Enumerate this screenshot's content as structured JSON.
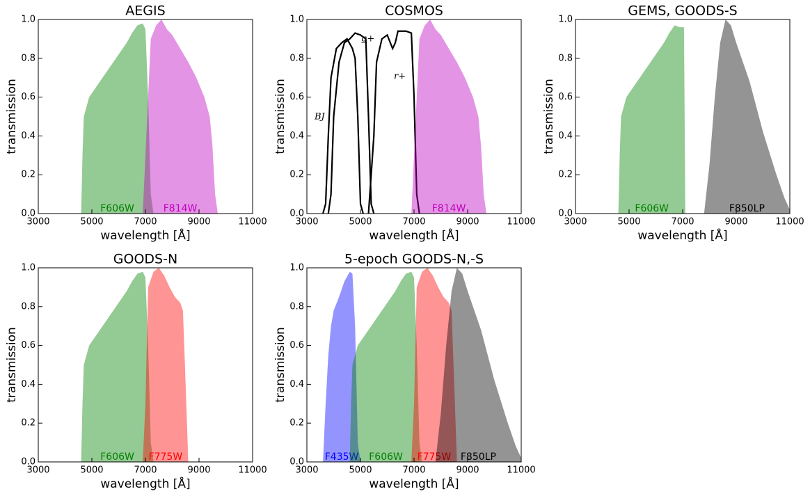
{
  "chart_data": [
    {
      "type": "area",
      "title": "AEGIS",
      "xlabel": "wavelength [Å]",
      "ylabel": "transmission",
      "xlim": [
        3000,
        11000
      ],
      "ylim": [
        0,
        1
      ],
      "xticks": [
        3000,
        5000,
        7000,
        9000,
        11000
      ],
      "yticks": [
        {
          "value": 0,
          "label": "0.0"
        },
        {
          "value": 0.2,
          "label": "0.2"
        },
        {
          "value": 0.4,
          "label": "0.4"
        },
        {
          "value": 0.6,
          "label": "0.6"
        },
        {
          "value": 0.8,
          "label": "0.8"
        },
        {
          "value": 1,
          "label": "1.0"
        }
      ],
      "series": [
        {
          "name": "F606W",
          "color": "#008000",
          "x": [
            4600,
            4650,
            4700,
            4900,
            5200,
            5500,
            5800,
            6000,
            6300,
            6500,
            6700,
            6900,
            7000,
            7100,
            7200,
            7300
          ],
          "values": [
            0,
            0.3,
            0.5,
            0.6,
            0.66,
            0.72,
            0.78,
            0.82,
            0.88,
            0.93,
            0.97,
            0.98,
            0.95,
            0.6,
            0.1,
            0
          ]
        },
        {
          "name": "F814W",
          "color": "#bf00bf",
          "x": [
            6900,
            7000,
            7200,
            7400,
            7600,
            7800,
            8000,
            8300,
            8600,
            8900,
            9200,
            9400,
            9500,
            9600,
            9700
          ],
          "values": [
            0,
            0.3,
            0.9,
            0.97,
            1,
            0.95,
            0.92,
            0.85,
            0.78,
            0.7,
            0.6,
            0.5,
            0.35,
            0.1,
            0
          ]
        }
      ]
    },
    {
      "type": "area",
      "title": "COSMOS",
      "xlabel": "wavelength [Å]",
      "ylabel": "transmission",
      "xlim": [
        3000,
        11000
      ],
      "ylim": [
        0,
        1
      ],
      "xticks": [
        3000,
        5000,
        7000,
        9000,
        11000
      ],
      "yticks": [
        {
          "value": 0,
          "label": "0.0"
        },
        {
          "value": 0.2,
          "label": "0.2"
        },
        {
          "value": 0.4,
          "label": "0.4"
        },
        {
          "value": 0.6,
          "label": "0.6"
        },
        {
          "value": 0.8,
          "label": "0.8"
        },
        {
          "value": 1,
          "label": "1.0"
        }
      ],
      "series": [
        {
          "name": "BJ",
          "type": "line",
          "color": "#000000",
          "x": [
            3600,
            3700,
            3800,
            3900,
            4100,
            4300,
            4500,
            4700,
            4800,
            4900,
            5000,
            5100
          ],
          "values": [
            0,
            0.05,
            0.4,
            0.7,
            0.85,
            0.88,
            0.9,
            0.85,
            0.8,
            0.5,
            0.05,
            0
          ]
        },
        {
          "name": "g+",
          "type": "line",
          "color": "#000000",
          "x": [
            3800,
            3900,
            4000,
            4200,
            4400,
            4600,
            4800,
            5000,
            5200,
            5300,
            5400,
            5500
          ],
          "values": [
            0,
            0.1,
            0.5,
            0.78,
            0.88,
            0.9,
            0.93,
            0.92,
            0.9,
            0.5,
            0.05,
            0
          ]
        },
        {
          "name": "r+",
          "type": "line",
          "color": "#000000",
          "x": [
            5300,
            5500,
            5600,
            5800,
            6000,
            6200,
            6300,
            6400,
            6700,
            6900,
            7000,
            7100,
            7200
          ],
          "values": [
            0,
            0.4,
            0.78,
            0.9,
            0.92,
            0.85,
            0.88,
            0.94,
            0.94,
            0.93,
            0.6,
            0.1,
            0
          ]
        },
        {
          "name": "F814W",
          "color": "#bf00bf",
          "x": [
            6900,
            7000,
            7200,
            7400,
            7600,
            7800,
            8000,
            8300,
            8600,
            8900,
            9200,
            9400,
            9500,
            9600,
            9700
          ],
          "values": [
            0,
            0.3,
            0.9,
            0.97,
            1,
            0.95,
            0.92,
            0.85,
            0.78,
            0.7,
            0.6,
            0.5,
            0.35,
            0.1,
            0
          ]
        }
      ]
    },
    {
      "type": "area",
      "title": "GEMS, GOODS-S",
      "xlabel": "wavelength [Å]",
      "ylabel": "transmission",
      "xlim": [
        3000,
        11000
      ],
      "ylim": [
        0,
        1
      ],
      "xticks": [
        3000,
        5000,
        7000,
        9000,
        11000
      ],
      "yticks": [
        {
          "value": 0,
          "label": "0.0"
        },
        {
          "value": 0.2,
          "label": "0.2"
        },
        {
          "value": 0.4,
          "label": "0.4"
        },
        {
          "value": 0.6,
          "label": "0.6"
        },
        {
          "value": 0.8,
          "label": "0.8"
        },
        {
          "value": 1,
          "label": "1.0"
        }
      ],
      "series": [
        {
          "name": "F606W",
          "color": "#008000",
          "x": [
            4600,
            4650,
            4700,
            4900,
            5200,
            5500,
            5800,
            6000,
            6300,
            6500,
            6700,
            6900,
            7050,
            7100
          ],
          "values": [
            0,
            0.3,
            0.5,
            0.6,
            0.66,
            0.72,
            0.78,
            0.82,
            0.88,
            0.93,
            0.97,
            0.96,
            0.96,
            0
          ]
        },
        {
          "name": "F850LP",
          "color": "#000000",
          "x": [
            7800,
            8000,
            8200,
            8400,
            8600,
            8800,
            9000,
            9500,
            10000,
            10500,
            10800,
            11000
          ],
          "values": [
            0,
            0.25,
            0.6,
            0.88,
            1,
            0.97,
            0.88,
            0.68,
            0.42,
            0.2,
            0.08,
            0.02
          ]
        }
      ]
    },
    {
      "type": "area",
      "title": "GOODS-N",
      "xlabel": "wavelength [Å]",
      "ylabel": "transmission",
      "xlim": [
        3000,
        11000
      ],
      "ylim": [
        0,
        1
      ],
      "xticks": [
        3000,
        5000,
        7000,
        9000,
        11000
      ],
      "yticks": [
        {
          "value": 0,
          "label": "0.0"
        },
        {
          "value": 0.2,
          "label": "0.2"
        },
        {
          "value": 0.4,
          "label": "0.4"
        },
        {
          "value": 0.6,
          "label": "0.6"
        },
        {
          "value": 0.8,
          "label": "0.8"
        },
        {
          "value": 1,
          "label": "1.0"
        }
      ],
      "series": [
        {
          "name": "F606W",
          "color": "#008000",
          "x": [
            4600,
            4650,
            4700,
            4900,
            5200,
            5500,
            5800,
            6000,
            6300,
            6500,
            6700,
            6900,
            7000,
            7100,
            7200,
            7300
          ],
          "values": [
            0,
            0.3,
            0.5,
            0.6,
            0.66,
            0.72,
            0.78,
            0.82,
            0.88,
            0.93,
            0.97,
            0.98,
            0.95,
            0.6,
            0.1,
            0
          ]
        },
        {
          "name": "F775W",
          "color": "#ff0000",
          "x": [
            6900,
            7000,
            7100,
            7300,
            7500,
            7700,
            7900,
            8100,
            8300,
            8400,
            8500,
            8600
          ],
          "values": [
            0,
            0.3,
            0.9,
            0.98,
            1,
            0.96,
            0.9,
            0.85,
            0.82,
            0.78,
            0.4,
            0
          ]
        }
      ]
    },
    {
      "type": "area",
      "title": "5-epoch GOODS-N,-S",
      "xlabel": "wavelength [Å]",
      "ylabel": "transmission",
      "xlim": [
        3000,
        11000
      ],
      "ylim": [
        0,
        1
      ],
      "xticks": [
        3000,
        5000,
        7000,
        9000,
        11000
      ],
      "yticks": [
        {
          "value": 0,
          "label": "0.0"
        },
        {
          "value": 0.2,
          "label": "0.2"
        },
        {
          "value": 0.4,
          "label": "0.4"
        },
        {
          "value": 0.6,
          "label": "0.6"
        },
        {
          "value": 0.8,
          "label": "0.8"
        },
        {
          "value": 1,
          "label": "1.0"
        }
      ],
      "series": [
        {
          "name": "F435W",
          "color": "#0000ff",
          "x": [
            3600,
            3700,
            3800,
            3900,
            4000,
            4200,
            4400,
            4600,
            4700,
            4800,
            4900,
            5000
          ],
          "values": [
            0,
            0.3,
            0.55,
            0.7,
            0.78,
            0.85,
            0.93,
            0.98,
            0.97,
            0.7,
            0.1,
            0
          ]
        },
        {
          "name": "F606W",
          "color": "#008000",
          "x": [
            4600,
            4650,
            4700,
            4900,
            5200,
            5500,
            5800,
            6000,
            6300,
            6500,
            6700,
            6900,
            7000,
            7100,
            7200,
            7300
          ],
          "values": [
            0,
            0.3,
            0.5,
            0.6,
            0.66,
            0.72,
            0.78,
            0.82,
            0.88,
            0.93,
            0.97,
            0.98,
            0.95,
            0.6,
            0.1,
            0
          ]
        },
        {
          "name": "F775W",
          "color": "#ff0000",
          "x": [
            6900,
            7000,
            7100,
            7300,
            7500,
            7700,
            7900,
            8100,
            8300,
            8400,
            8500,
            8600
          ],
          "values": [
            0,
            0.3,
            0.9,
            0.98,
            1,
            0.96,
            0.9,
            0.85,
            0.82,
            0.78,
            0.4,
            0
          ]
        },
        {
          "name": "F850LP",
          "color": "#000000",
          "x": [
            7800,
            8000,
            8200,
            8400,
            8600,
            8800,
            9000,
            9500,
            10000,
            10500,
            10800,
            11000
          ],
          "values": [
            0,
            0.25,
            0.6,
            0.88,
            1,
            0.97,
            0.88,
            0.68,
            0.42,
            0.2,
            0.08,
            0.02
          ]
        }
      ]
    }
  ]
}
